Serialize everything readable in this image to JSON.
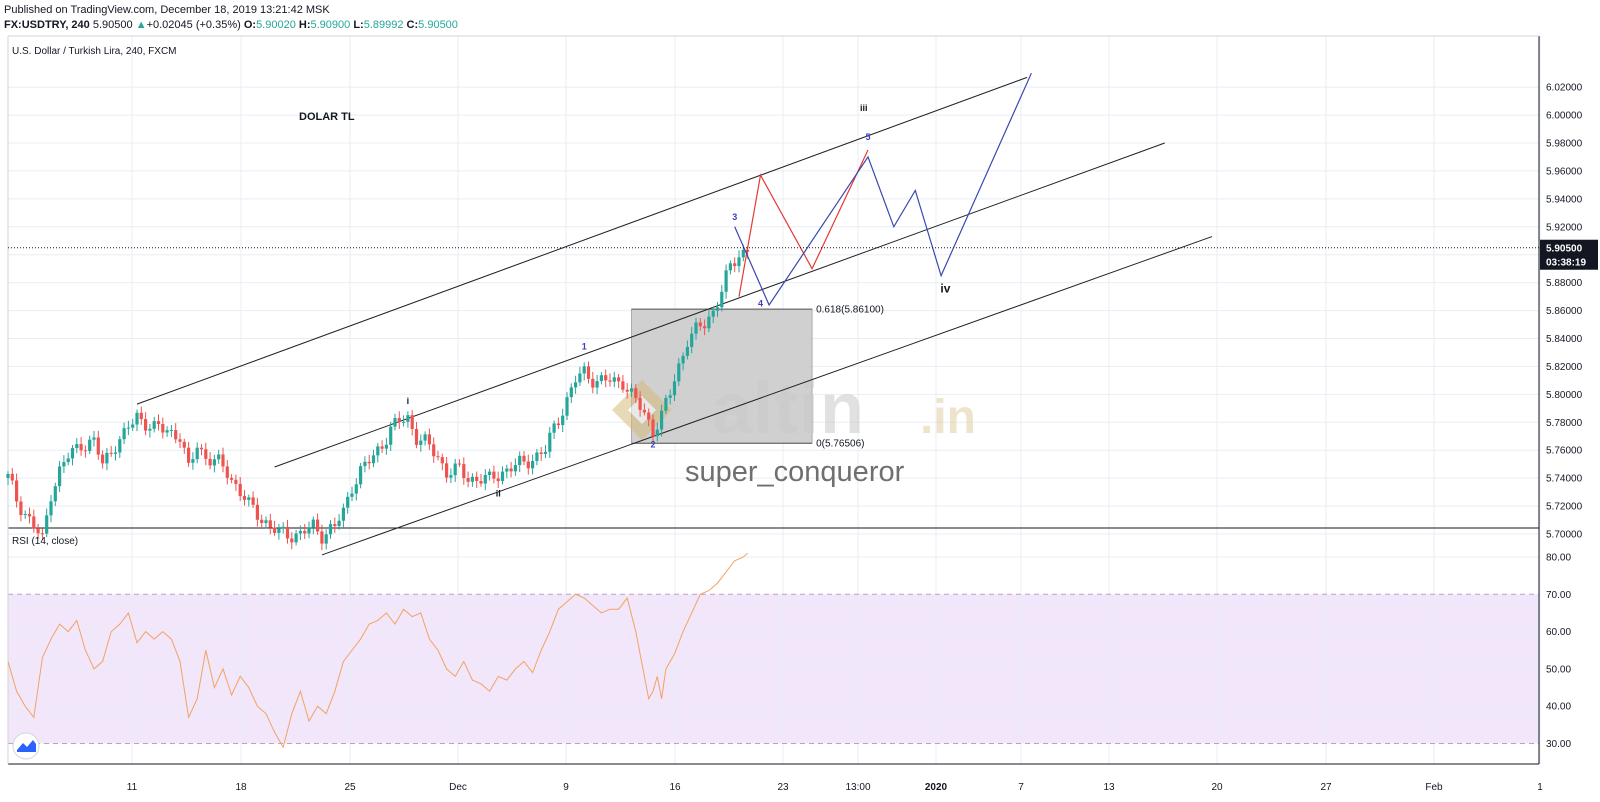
{
  "header": {
    "published": "Published on TradingView.com, December 18, 2019 13:21:42 MSK",
    "symbol": "FX:USDTRY, 240",
    "last": "5.90500",
    "change_arrow": "▲",
    "change": "+0.02045 (+0.35%)",
    "o_label": "O:",
    "o_value": "5.90020",
    "h_label": "H:",
    "h_value": "5.90900",
    "l_label": "L:",
    "l_value": "5.89992",
    "c_label": "C:",
    "c_value": "5.90500"
  },
  "main_pane": {
    "instrument_title": "U.S. Dollar / Turkish Lira, 240, FXCM",
    "note": "DOLAR TL"
  },
  "rsi_pane": {
    "title": "RSI (14, close)"
  },
  "watermark": {
    "logo_text": "altin",
    "logo_suffix": ".in",
    "author": "super_conqueror"
  },
  "colors": {
    "up": "#26a69a",
    "down": "#ef5350",
    "rsi_line": "#f4a261",
    "rsi_band": "#f2e6fb",
    "projection_red": "#e53935",
    "projection_blue": "#3949ab",
    "wave_label_blue": "#3f3fbf",
    "box_fill": "#c8c8c8"
  },
  "chart_data": [
    {
      "type": "candlestick",
      "title": "U.S. Dollar / Turkish Lira, 240, FXCM",
      "symbol": "FX:USDTRY",
      "timeframe": "240",
      "x_ticks": [
        "11",
        "18",
        "25",
        "Dec",
        "9",
        "16",
        "23",
        "13:00",
        "2020",
        "7",
        "13",
        "20",
        "27",
        "Feb",
        "1"
      ],
      "y_ticks": [
        "6.02000",
        "6.00000",
        "5.98000",
        "5.96000",
        "5.94000",
        "5.92000",
        "5.90000",
        "5.88000",
        "5.86000",
        "5.84000",
        "5.82000",
        "5.80000",
        "5.78000",
        "5.76000",
        "5.74000",
        "5.72000",
        "5.70000"
      ],
      "ylim": [
        5.685,
        6.03
      ],
      "current_price": "5.90500",
      "countdown": "03:38:19",
      "close_path": [
        {
          "x": 0,
          "y": 5.74
        },
        {
          "x": 2,
          "y": 5.725
        },
        {
          "x": 4,
          "y": 5.715
        },
        {
          "x": 6,
          "y": 5.705
        },
        {
          "x": 8,
          "y": 5.695
        },
        {
          "x": 10,
          "y": 5.73
        },
        {
          "x": 12,
          "y": 5.745
        },
        {
          "x": 14,
          "y": 5.755
        },
        {
          "x": 17,
          "y": 5.765
        },
        {
          "x": 20,
          "y": 5.765
        },
        {
          "x": 22,
          "y": 5.75
        },
        {
          "x": 25,
          "y": 5.765
        },
        {
          "x": 27,
          "y": 5.77
        },
        {
          "x": 30,
          "y": 5.785
        },
        {
          "x": 32,
          "y": 5.78
        },
        {
          "x": 34,
          "y": 5.775
        },
        {
          "x": 37,
          "y": 5.775
        },
        {
          "x": 40,
          "y": 5.77
        },
        {
          "x": 42,
          "y": 5.745
        },
        {
          "x": 44,
          "y": 5.765
        },
        {
          "x": 46,
          "y": 5.755
        },
        {
          "x": 49,
          "y": 5.75
        },
        {
          "x": 51,
          "y": 5.745
        },
        {
          "x": 53,
          "y": 5.735
        },
        {
          "x": 56,
          "y": 5.72
        },
        {
          "x": 58,
          "y": 5.715
        },
        {
          "x": 61,
          "y": 5.705
        },
        {
          "x": 63,
          "y": 5.7
        },
        {
          "x": 66,
          "y": 5.7
        },
        {
          "x": 68,
          "y": 5.7
        },
        {
          "x": 71,
          "y": 5.705
        },
        {
          "x": 73,
          "y": 5.7
        },
        {
          "x": 76,
          "y": 5.705
        },
        {
          "x": 78,
          "y": 5.715
        },
        {
          "x": 80,
          "y": 5.735
        },
        {
          "x": 82,
          "y": 5.745
        },
        {
          "x": 85,
          "y": 5.755
        },
        {
          "x": 87,
          "y": 5.765
        },
        {
          "x": 89,
          "y": 5.775
        },
        {
          "x": 91,
          "y": 5.78
        },
        {
          "x": 93,
          "y": 5.783
        },
        {
          "x": 95,
          "y": 5.77
        },
        {
          "x": 97,
          "y": 5.765
        },
        {
          "x": 100,
          "y": 5.755
        },
        {
          "x": 102,
          "y": 5.745
        },
        {
          "x": 105,
          "y": 5.745
        },
        {
          "x": 107,
          "y": 5.74
        },
        {
          "x": 110,
          "y": 5.74
        },
        {
          "x": 112,
          "y": 5.738
        },
        {
          "x": 115,
          "y": 5.745
        },
        {
          "x": 117,
          "y": 5.748
        },
        {
          "x": 120,
          "y": 5.75
        },
        {
          "x": 122,
          "y": 5.755
        },
        {
          "x": 125,
          "y": 5.76
        },
        {
          "x": 127,
          "y": 5.775
        },
        {
          "x": 129,
          "y": 5.79
        },
        {
          "x": 132,
          "y": 5.81
        },
        {
          "x": 134,
          "y": 5.815
        },
        {
          "x": 137,
          "y": 5.81
        },
        {
          "x": 139,
          "y": 5.81
        },
        {
          "x": 141,
          "y": 5.808
        },
        {
          "x": 143,
          "y": 5.81
        },
        {
          "x": 145,
          "y": 5.8
        },
        {
          "x": 147,
          "y": 5.79
        },
        {
          "x": 149,
          "y": 5.78
        },
        {
          "x": 150,
          "y": 5.775
        },
        {
          "x": 151,
          "y": 5.78
        },
        {
          "x": 152,
          "y": 5.785
        },
        {
          "x": 154,
          "y": 5.8
        },
        {
          "x": 156,
          "y": 5.82
        },
        {
          "x": 158,
          "y": 5.84
        },
        {
          "x": 160,
          "y": 5.845
        },
        {
          "x": 162,
          "y": 5.85
        },
        {
          "x": 164,
          "y": 5.86
        },
        {
          "x": 166,
          "y": 5.875
        },
        {
          "x": 168,
          "y": 5.89
        },
        {
          "x": 170,
          "y": 5.9
        },
        {
          "x": 172,
          "y": 5.905
        }
      ],
      "annotations": {
        "wave_labels": [
          {
            "text": "i",
            "x": 93,
            "y": 5.793
          },
          {
            "text": "ii",
            "x": 114,
            "y": 5.727
          },
          {
            "text": "1",
            "x": 134,
            "y": 5.832
          },
          {
            "text": "2",
            "x": 150,
            "y": 5.762
          },
          {
            "text": "3",
            "x": 169,
            "y": 5.925
          },
          {
            "text": "4",
            "x": 175,
            "y": 5.863
          },
          {
            "text": "5",
            "x": 200,
            "y": 5.982
          },
          {
            "text": "iii",
            "x": 199,
            "y": 6.003
          },
          {
            "text": "iv",
            "x": 218,
            "y": 5.873
          }
        ],
        "fib_levels": [
          {
            "text": "0.618(5.86100)",
            "y": 5.861
          },
          {
            "text": "0(5.76506)",
            "y": 5.765
          }
        ],
        "fib_box": {
          "x0": 145,
          "x1": 187,
          "y0": 5.765,
          "y1": 5.861
        },
        "channels": [
          {
            "from": {
              "x": 30,
              "y": 5.793
            },
            "to": {
              "x": 237,
              "y": 6.027
            }
          },
          {
            "from": {
              "x": 62,
              "y": 5.748
            },
            "to": {
              "x": 269,
              "y": 5.98
            }
          },
          {
            "from": {
              "x": 73,
              "y": 5.685
            },
            "to": {
              "x": 280,
              "y": 5.913
            }
          }
        ],
        "projection_red": [
          {
            "x": 170,
            "y": 5.87
          },
          {
            "x": 175,
            "y": 5.957
          },
          {
            "x": 187,
            "y": 5.89
          },
          {
            "x": 200,
            "y": 5.975
          }
        ],
        "projection_blue": [
          {
            "x": 169,
            "y": 5.92
          },
          {
            "x": 177,
            "y": 5.864
          },
          {
            "x": 200,
            "y": 5.97
          },
          {
            "x": 206,
            "y": 5.92
          },
          {
            "x": 211,
            "y": 5.946
          },
          {
            "x": 217,
            "y": 5.885
          },
          {
            "x": 238,
            "y": 6.03
          }
        ]
      }
    },
    {
      "type": "line",
      "title": "RSI (14, close)",
      "y_ticks": [
        "80.00",
        "70.00",
        "60.00",
        "50.00",
        "40.00",
        "30.00"
      ],
      "ylim": [
        23,
        88
      ],
      "band": [
        30,
        70
      ],
      "points": [
        {
          "x": 0,
          "y": 52
        },
        {
          "x": 2,
          "y": 44
        },
        {
          "x": 4,
          "y": 40
        },
        {
          "x": 6,
          "y": 37
        },
        {
          "x": 8,
          "y": 53
        },
        {
          "x": 10,
          "y": 58
        },
        {
          "x": 12,
          "y": 62
        },
        {
          "x": 14,
          "y": 60
        },
        {
          "x": 16,
          "y": 63
        },
        {
          "x": 18,
          "y": 55
        },
        {
          "x": 20,
          "y": 50
        },
        {
          "x": 22,
          "y": 52
        },
        {
          "x": 24,
          "y": 60
        },
        {
          "x": 26,
          "y": 62
        },
        {
          "x": 28,
          "y": 65
        },
        {
          "x": 30,
          "y": 57
        },
        {
          "x": 32,
          "y": 60
        },
        {
          "x": 34,
          "y": 58
        },
        {
          "x": 36,
          "y": 60
        },
        {
          "x": 38,
          "y": 58
        },
        {
          "x": 40,
          "y": 52
        },
        {
          "x": 42,
          "y": 37
        },
        {
          "x": 44,
          "y": 42
        },
        {
          "x": 46,
          "y": 55
        },
        {
          "x": 48,
          "y": 45
        },
        {
          "x": 50,
          "y": 50
        },
        {
          "x": 52,
          "y": 43
        },
        {
          "x": 54,
          "y": 48
        },
        {
          "x": 56,
          "y": 45
        },
        {
          "x": 58,
          "y": 40
        },
        {
          "x": 60,
          "y": 38
        },
        {
          "x": 62,
          "y": 33
        },
        {
          "x": 64,
          "y": 29
        },
        {
          "x": 66,
          "y": 38
        },
        {
          "x": 68,
          "y": 44
        },
        {
          "x": 70,
          "y": 36
        },
        {
          "x": 72,
          "y": 40
        },
        {
          "x": 74,
          "y": 38
        },
        {
          "x": 76,
          "y": 44
        },
        {
          "x": 78,
          "y": 52
        },
        {
          "x": 80,
          "y": 55
        },
        {
          "x": 82,
          "y": 58
        },
        {
          "x": 84,
          "y": 62
        },
        {
          "x": 86,
          "y": 63
        },
        {
          "x": 88,
          "y": 65
        },
        {
          "x": 90,
          "y": 62
        },
        {
          "x": 92,
          "y": 66
        },
        {
          "x": 94,
          "y": 64
        },
        {
          "x": 96,
          "y": 65
        },
        {
          "x": 98,
          "y": 58
        },
        {
          "x": 100,
          "y": 55
        },
        {
          "x": 102,
          "y": 50
        },
        {
          "x": 104,
          "y": 48
        },
        {
          "x": 106,
          "y": 52
        },
        {
          "x": 108,
          "y": 47
        },
        {
          "x": 110,
          "y": 46
        },
        {
          "x": 112,
          "y": 44
        },
        {
          "x": 114,
          "y": 48
        },
        {
          "x": 116,
          "y": 47
        },
        {
          "x": 118,
          "y": 50
        },
        {
          "x": 120,
          "y": 52
        },
        {
          "x": 122,
          "y": 49
        },
        {
          "x": 124,
          "y": 55
        },
        {
          "x": 126,
          "y": 60
        },
        {
          "x": 128,
          "y": 66
        },
        {
          "x": 130,
          "y": 68
        },
        {
          "x": 132,
          "y": 70
        },
        {
          "x": 134,
          "y": 69
        },
        {
          "x": 136,
          "y": 67
        },
        {
          "x": 138,
          "y": 65
        },
        {
          "x": 140,
          "y": 66
        },
        {
          "x": 142,
          "y": 66
        },
        {
          "x": 144,
          "y": 69
        },
        {
          "x": 146,
          "y": 60
        },
        {
          "x": 148,
          "y": 48
        },
        {
          "x": 149,
          "y": 42
        },
        {
          "x": 150,
          "y": 44
        },
        {
          "x": 151,
          "y": 48
        },
        {
          "x": 152,
          "y": 42
        },
        {
          "x": 153,
          "y": 50
        },
        {
          "x": 155,
          "y": 54
        },
        {
          "x": 157,
          "y": 60
        },
        {
          "x": 159,
          "y": 65
        },
        {
          "x": 161,
          "y": 70
        },
        {
          "x": 163,
          "y": 71
        },
        {
          "x": 165,
          "y": 73
        },
        {
          "x": 167,
          "y": 76
        },
        {
          "x": 169,
          "y": 79
        },
        {
          "x": 171,
          "y": 80
        },
        {
          "x": 172,
          "y": 81
        }
      ]
    }
  ]
}
